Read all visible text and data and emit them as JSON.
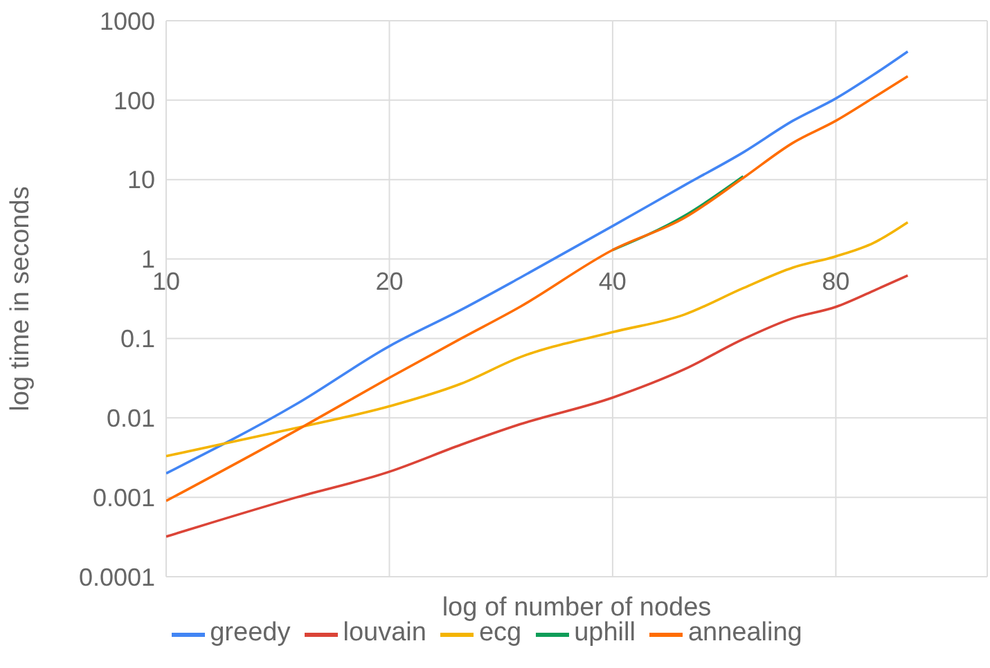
{
  "chart_data": {
    "type": "line",
    "xlabel": "log of number of nodes",
    "ylabel": "log time in seconds",
    "x": [
      10,
      15,
      20,
      25,
      30,
      40,
      50,
      60,
      70,
      80,
      90,
      100
    ],
    "series": [
      {
        "name": "greedy",
        "color": "#4285f4",
        "values": [
          0.002,
          0.015,
          0.08,
          0.23,
          0.58,
          2.6,
          8.5,
          22,
          55,
          105,
          210,
          410
        ]
      },
      {
        "name": "louvain",
        "color": "#db4437",
        "values": [
          0.00032,
          0.001,
          0.0021,
          0.0046,
          0.0083,
          0.018,
          0.041,
          0.098,
          0.18,
          0.25,
          0.4,
          0.62
        ]
      },
      {
        "name": "ecg",
        "color": "#f4b400",
        "values": [
          0.0033,
          0.0075,
          0.014,
          0.027,
          0.058,
          0.12,
          0.2,
          0.43,
          0.78,
          1.08,
          1.6,
          2.9
        ]
      },
      {
        "name": "uphill",
        "color": "#0f9d58",
        "values": [
          null,
          null,
          null,
          null,
          null,
          1.3,
          3.5,
          11,
          null,
          null,
          null,
          null
        ]
      },
      {
        "name": "annealing",
        "color": "#ff6d01",
        "values": [
          0.0009,
          0.007,
          0.032,
          0.1,
          0.25,
          1.3,
          3.3,
          10.5,
          29,
          55,
          108,
          200
        ]
      }
    ],
    "log": "xy",
    "xlim": [
      10,
      128
    ],
    "xticks": [
      10,
      20,
      40,
      80
    ],
    "ylim": [
      0.0001,
      1000
    ],
    "yticks": [
      0.0001,
      0.001,
      0.01,
      0.1,
      1,
      10,
      100,
      1000
    ],
    "grid": true,
    "legend": "bottom",
    "marker": "none",
    "line_style": "solid"
  }
}
